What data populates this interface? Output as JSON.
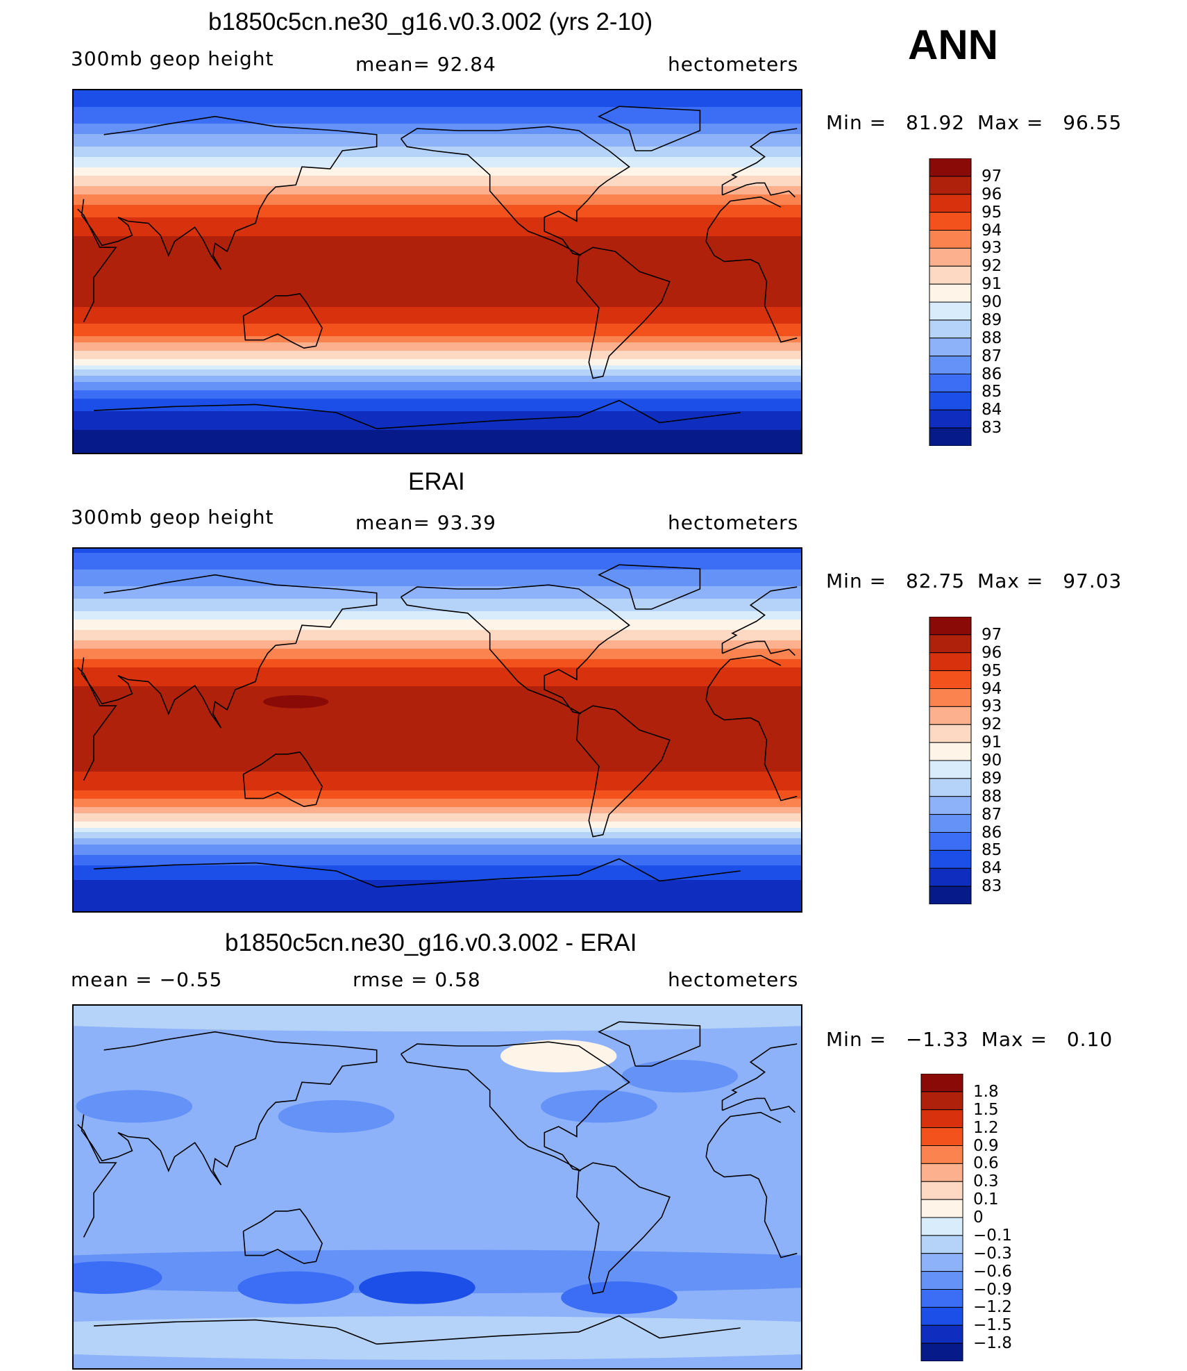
{
  "season": "ANN",
  "chart_data": [
    {
      "type": "heatmap",
      "id": "model",
      "title": "b1850c5cn.ne30_g16.v0.3.002 (yrs 2-10)",
      "left_label": "300mb geop height",
      "center_label": "mean=  92.84",
      "units": "hectometers",
      "stats": {
        "min_label": "Min =",
        "min": "81.92",
        "max_label": "Max =",
        "max": "96.55"
      },
      "levels": [
        "97",
        "96",
        "95",
        "94",
        "93",
        "92",
        "91",
        "90",
        "89",
        "88",
        "87",
        "86",
        "85",
        "84",
        "83"
      ],
      "colors": [
        "#8a0a08",
        "#b0210c",
        "#d7310e",
        "#f4521c",
        "#fb8350",
        "#fcb08e",
        "#fdd8c3",
        "#fff4e8",
        "#d9ecfb",
        "#b5d2f8",
        "#8db2fa",
        "#6592f7",
        "#3c6ef5",
        "#1c4fe8",
        "#0f2ec0",
        "#061a8a"
      ],
      "band_centers": [
        {
          "lat": 90,
          "value": 84.0
        },
        {
          "lat": 75,
          "value": 85.8
        },
        {
          "lat": 60,
          "value": 88.3
        },
        {
          "lat": 45,
          "value": 91.5
        },
        {
          "lat": 30,
          "value": 94.7
        },
        {
          "lat": 15,
          "value": 96.3
        },
        {
          "lat": 0,
          "value": 96.5
        },
        {
          "lat": -15,
          "value": 96.3
        },
        {
          "lat": -30,
          "value": 94.5
        },
        {
          "lat": -45,
          "value": 90.5
        },
        {
          "lat": -55,
          "value": 86.8
        },
        {
          "lat": -65,
          "value": 84.6
        },
        {
          "lat": -75,
          "value": 83.2
        },
        {
          "lat": -90,
          "value": 82.4
        }
      ]
    },
    {
      "type": "heatmap",
      "id": "obs",
      "title": "ERAI",
      "left_label": "300mb geop height",
      "center_label": "mean=  93.39",
      "units": "hectometers",
      "stats": {
        "min_label": "Min =",
        "min": "82.75",
        "max_label": "Max =",
        "max": "97.03"
      },
      "levels": [
        "97",
        "96",
        "95",
        "94",
        "93",
        "92",
        "91",
        "90",
        "89",
        "88",
        "87",
        "86",
        "85",
        "84",
        "83"
      ],
      "colors": [
        "#8a0a08",
        "#b0210c",
        "#d7310e",
        "#f4521c",
        "#fb8350",
        "#fcb08e",
        "#fdd8c3",
        "#fff4e8",
        "#d9ecfb",
        "#b5d2f8",
        "#8db2fa",
        "#6592f7",
        "#3c6ef5",
        "#1c4fe8",
        "#0f2ec0",
        "#061a8a"
      ],
      "band_centers": [
        {
          "lat": 90,
          "value": 84.8
        },
        {
          "lat": 75,
          "value": 86.5
        },
        {
          "lat": 60,
          "value": 88.8
        },
        {
          "lat": 45,
          "value": 92.0
        },
        {
          "lat": 30,
          "value": 95.2
        },
        {
          "lat": 15,
          "value": 96.6
        },
        {
          "lat": 0,
          "value": 96.8
        },
        {
          "lat": -15,
          "value": 96.6
        },
        {
          "lat": -30,
          "value": 95.0
        },
        {
          "lat": -45,
          "value": 91.2
        },
        {
          "lat": -55,
          "value": 87.4
        },
        {
          "lat": -65,
          "value": 85.3
        },
        {
          "lat": -75,
          "value": 84.0
        },
        {
          "lat": -90,
          "value": 83.2
        }
      ],
      "max_blob": {
        "lon": 140,
        "lat": 14,
        "value": 97.03
      }
    },
    {
      "type": "heatmap",
      "id": "diff",
      "title": "b1850c5cn.ne30_g16.v0.3.002 - ERAI",
      "left_label": "mean =   −0.55",
      "center_label": "rmse =    0.58",
      "units": "hectometers",
      "stats": {
        "min_label": "Min =",
        "min": "−1.33",
        "max_label": "Max =",
        "max": "0.10"
      },
      "levels": [
        "1.8",
        "1.5",
        "1.2",
        "0.9",
        "0.6",
        "0.3",
        "0.1",
        "0",
        "−0.1",
        "−0.3",
        "−0.6",
        "−0.9",
        "−1.2",
        "−1.5",
        "−1.8"
      ],
      "colors": [
        "#8a0a08",
        "#b0210c",
        "#d7310e",
        "#f4521c",
        "#fb8350",
        "#fcb08e",
        "#fdd8c3",
        "#fff4e8",
        "#d9ecfb",
        "#b5d2f8",
        "#8db2fa",
        "#6592f7",
        "#3c6ef5",
        "#1c4fe8",
        "#0f2ec0",
        "#061a8a"
      ],
      "background_value": -0.45,
      "features": [
        {
          "kind": "band",
          "lat": 88,
          "value": -0.2
        },
        {
          "kind": "blob",
          "lon": 270,
          "lat": 65,
          "value": 0.05
        },
        {
          "kind": "blob",
          "lon": 60,
          "lat": 40,
          "value": -0.7
        },
        {
          "kind": "blob",
          "lon": 160,
          "lat": 35,
          "value": -0.65
        },
        {
          "kind": "blob",
          "lon": 290,
          "lat": 40,
          "value": -0.65
        },
        {
          "kind": "blob",
          "lon": 330,
          "lat": 55,
          "value": -0.65
        },
        {
          "kind": "band",
          "lat": -42,
          "value": -0.7
        },
        {
          "kind": "blob",
          "lon": 45,
          "lat": -45,
          "value": -0.95
        },
        {
          "kind": "blob",
          "lon": 140,
          "lat": -50,
          "value": -1.0
        },
        {
          "kind": "blob",
          "lon": 200,
          "lat": -50,
          "value": -1.3
        },
        {
          "kind": "blob",
          "lon": 300,
          "lat": -55,
          "value": -1.0
        },
        {
          "kind": "band",
          "lat": -75,
          "value": -0.2
        }
      ]
    }
  ]
}
